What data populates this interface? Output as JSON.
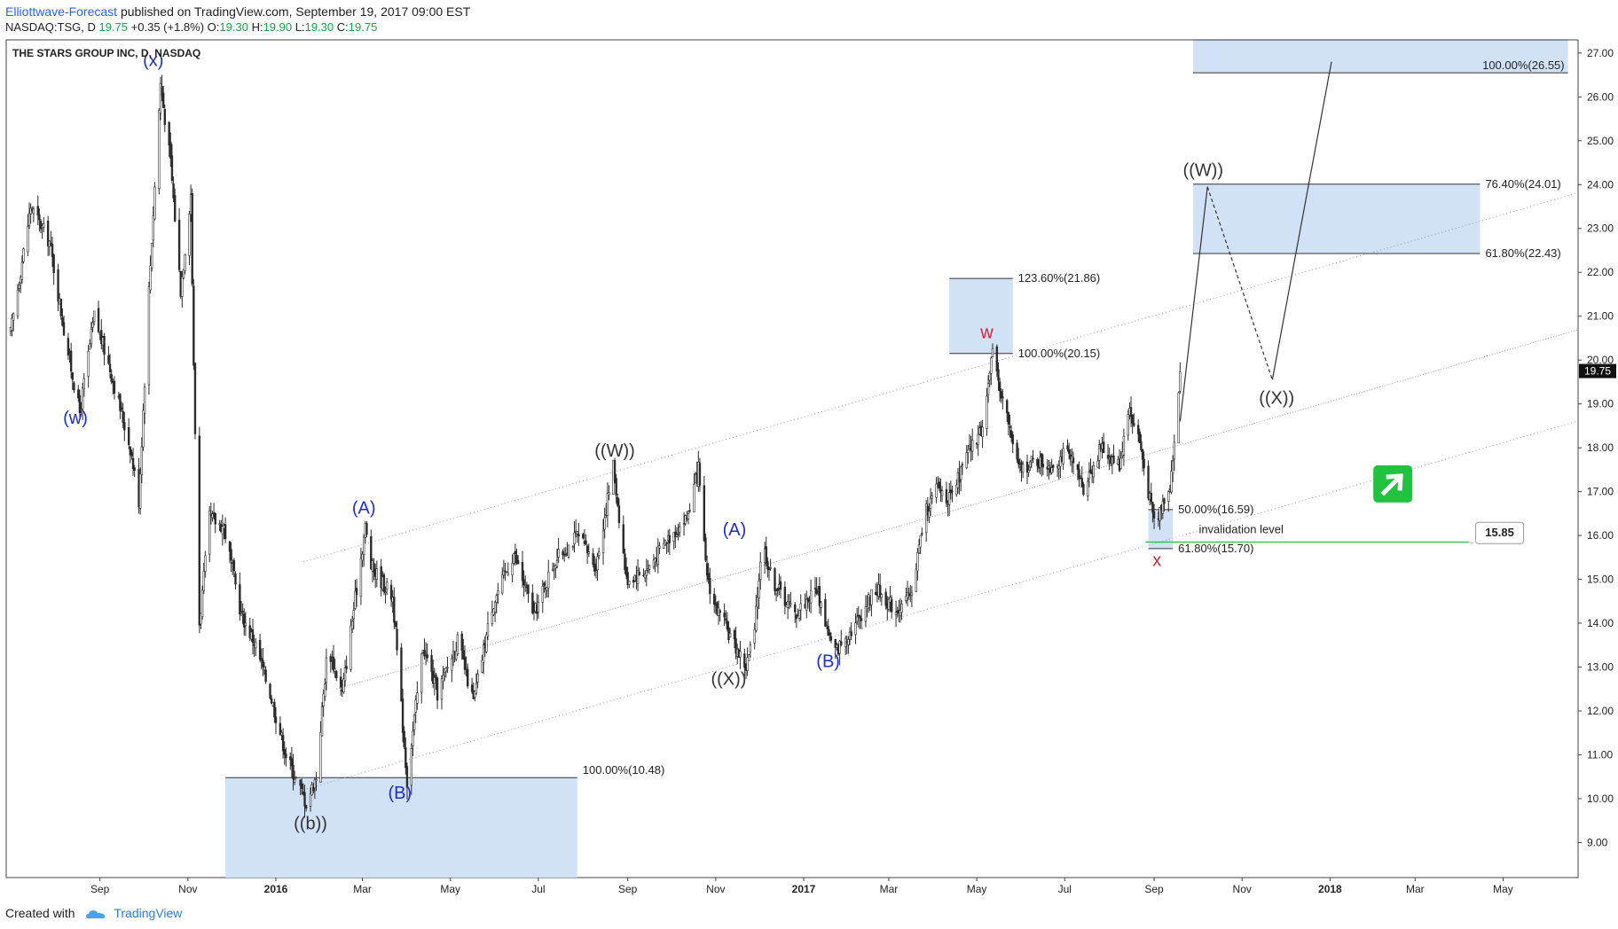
{
  "header": {
    "author": "Elliottwave-Forecast",
    "published": "published on TradingView.com, September 19, 2017 09:00 EST",
    "symbol": "NASDAQ:TSG, D",
    "last": "19.75",
    "change": "+0.35 (+1.8%)",
    "o_label": "O:",
    "o_value": "19.30",
    "h_label": "H:",
    "h_value": "19.90",
    "l_label": "L:",
    "l_value": "19.30",
    "c_label": "C:",
    "c_value": "19.75"
  },
  "footer": {
    "created_with": "Created with",
    "brand": "TradingView",
    "logo_icon": "tradingview-cloud-icon"
  },
  "chart_data": {
    "type": "candlestick",
    "title": "THE STARS GROUP INC, D, NASDAQ",
    "ylim": [
      8.2,
      27.3
    ],
    "y_ticks": [
      "9.00",
      "10.00",
      "11.00",
      "12.00",
      "13.00",
      "14.00",
      "15.00",
      "16.00",
      "17.00",
      "18.00",
      "19.00",
      "20.00",
      "21.00",
      "22.00",
      "23.00",
      "24.00",
      "25.00",
      "26.00",
      "27.00"
    ],
    "x_ticks": [
      {
        "label": "Sep",
        "date": "2015-09-01",
        "bold": false
      },
      {
        "label": "Nov",
        "date": "2015-11-01",
        "bold": false
      },
      {
        "label": "2016",
        "date": "2016-01-01",
        "bold": true
      },
      {
        "label": "Mar",
        "date": "2016-03-01",
        "bold": false
      },
      {
        "label": "May",
        "date": "2016-05-01",
        "bold": false
      },
      {
        "label": "Jul",
        "date": "2016-07-01",
        "bold": false
      },
      {
        "label": "Sep",
        "date": "2016-09-01",
        "bold": false
      },
      {
        "label": "Nov",
        "date": "2016-11-01",
        "bold": false
      },
      {
        "label": "2017",
        "date": "2017-01-01",
        "bold": true
      },
      {
        "label": "Mar",
        "date": "2017-03-01",
        "bold": false
      },
      {
        "label": "May",
        "date": "2017-05-01",
        "bold": false
      },
      {
        "label": "Jul",
        "date": "2017-07-01",
        "bold": false
      },
      {
        "label": "Sep",
        "date": "2017-09-01",
        "bold": false
      },
      {
        "label": "Nov",
        "date": "2017-11-01",
        "bold": false
      },
      {
        "label": "2018",
        "date": "2018-01-01",
        "bold": true
      },
      {
        "label": "Mar",
        "date": "2018-03-01",
        "bold": false
      },
      {
        "label": "May",
        "date": "2018-05-01",
        "bold": false
      }
    ],
    "last_price": "19.75",
    "price_path": [
      [
        "2015-07-01",
        20.6
      ],
      [
        "2015-07-15",
        23.5
      ],
      [
        "2015-07-28",
        22.7
      ],
      [
        "2015-08-08",
        20.5
      ],
      [
        "2015-08-18",
        18.8
      ],
      [
        "2015-08-28",
        21.0
      ],
      [
        "2015-09-08",
        19.8
      ],
      [
        "2015-09-22",
        18.0
      ],
      [
        "2015-09-28",
        16.8
      ],
      [
        "2015-10-05",
        21.6
      ],
      [
        "2015-10-13",
        26.3
      ],
      [
        "2015-10-20",
        24.5
      ],
      [
        "2015-10-27",
        21.6
      ],
      [
        "2015-11-03",
        23.8
      ],
      [
        "2015-11-05",
        19.8
      ],
      [
        "2015-11-09",
        14.0
      ],
      [
        "2015-11-16",
        16.4
      ],
      [
        "2015-11-26",
        16.2
      ],
      [
        "2015-12-08",
        14.2
      ],
      [
        "2015-12-18",
        13.5
      ],
      [
        "2015-12-28",
        12.4
      ],
      [
        "2016-01-08",
        11.0
      ],
      [
        "2016-01-22",
        9.9
      ],
      [
        "2016-01-29",
        10.5
      ],
      [
        "2016-02-06",
        13.5
      ],
      [
        "2016-02-16",
        12.4
      ],
      [
        "2016-02-26",
        14.8
      ],
      [
        "2016-03-03",
        16.2
      ],
      [
        "2016-03-07",
        15.3
      ],
      [
        "2016-03-22",
        14.6
      ],
      [
        "2016-04-01",
        10.4
      ],
      [
        "2016-04-12",
        13.5
      ],
      [
        "2016-04-22",
        12.4
      ],
      [
        "2016-05-06",
        13.6
      ],
      [
        "2016-05-17",
        12.2
      ],
      [
        "2016-05-30",
        14.4
      ],
      [
        "2016-06-14",
        15.6
      ],
      [
        "2016-06-28",
        14.2
      ],
      [
        "2016-07-12",
        15.4
      ],
      [
        "2016-07-28",
        16.0
      ],
      [
        "2016-08-10",
        15.3
      ],
      [
        "2016-08-22",
        17.6
      ],
      [
        "2016-08-31",
        15.0
      ],
      [
        "2016-09-14",
        15.2
      ],
      [
        "2016-09-28",
        15.9
      ],
      [
        "2016-10-12",
        16.4
      ],
      [
        "2016-10-20",
        17.5
      ],
      [
        "2016-10-25",
        15.3
      ],
      [
        "2016-10-30",
        14.5
      ],
      [
        "2016-11-08",
        13.9
      ],
      [
        "2016-11-22",
        13.0
      ],
      [
        "2016-11-28",
        13.8
      ],
      [
        "2016-12-03",
        15.9
      ],
      [
        "2016-12-10",
        15.0
      ],
      [
        "2016-12-26",
        14.2
      ],
      [
        "2017-01-10",
        14.8
      ],
      [
        "2017-01-22",
        13.3
      ],
      [
        "2017-02-06",
        14.0
      ],
      [
        "2017-02-20",
        14.8
      ],
      [
        "2017-03-06",
        14.3
      ],
      [
        "2017-03-16",
        14.6
      ],
      [
        "2017-03-26",
        16.5
      ],
      [
        "2017-04-04",
        17.1
      ],
      [
        "2017-04-13",
        16.8
      ],
      [
        "2017-04-24",
        17.8
      ],
      [
        "2017-05-04",
        18.4
      ],
      [
        "2017-05-12",
        20.1
      ],
      [
        "2017-05-20",
        19.0
      ],
      [
        "2017-05-30",
        17.5
      ],
      [
        "2017-06-10",
        17.7
      ],
      [
        "2017-06-22",
        17.6
      ],
      [
        "2017-07-02",
        17.9
      ],
      [
        "2017-07-14",
        17.1
      ],
      [
        "2017-07-26",
        18.0
      ],
      [
        "2017-08-08",
        17.6
      ],
      [
        "2017-08-14",
        18.9
      ],
      [
        "2017-08-21",
        18.3
      ],
      [
        "2017-08-29",
        16.8
      ],
      [
        "2017-09-02",
        16.2
      ],
      [
        "2017-09-06",
        16.7
      ],
      [
        "2017-09-12",
        17.2
      ],
      [
        "2017-09-16",
        18.3
      ],
      [
        "2017-09-19",
        19.75
      ]
    ],
    "fib_boxes": [
      {
        "x0": "2015-11-27",
        "x1": "2016-07-28",
        "y0": 8.2,
        "y1": 10.48,
        "top_label": "100.00%(10.48)"
      },
      {
        "x0": "2017-04-12",
        "x1": "2017-05-26",
        "y0": 20.15,
        "y1": 21.86,
        "top_label": "123.60%(21.86)",
        "bottom_label": "100.00%(20.15)"
      },
      {
        "x0": "2017-08-28",
        "x1": "2017-09-14",
        "y0": 15.7,
        "y1": 16.59,
        "top_label": "50.00%(16.59)",
        "bottom_label": "61.80%(15.70)"
      },
      {
        "x0": "2017-09-28",
        "x1": "2018-04-15",
        "y0": 22.43,
        "y1": 24.01,
        "top_label": "76.40%(24.01)",
        "bottom_label": "61.80%(22.43)"
      },
      {
        "x0": "2017-09-28",
        "x1": "2018-06-15",
        "y0": 26.55,
        "y1": 27.3,
        "bottom_label": "100.00%(26.55)"
      }
    ],
    "wave_labels": [
      {
        "text": "(w)",
        "date": "2015-08-15",
        "y": 18.55,
        "color": "#1f2ec9"
      },
      {
        "text": "(x)",
        "date": "2015-10-08",
        "y": 26.7,
        "color": "#1f2ec9"
      },
      {
        "text": "((b))",
        "date": "2016-01-25",
        "y": 9.3,
        "color": "#333333"
      },
      {
        "text": "(A)",
        "date": "2016-03-02",
        "y": 16.5,
        "color": "#1f2ec9"
      },
      {
        "text": "(B)",
        "date": "2016-03-27",
        "y": 10.0,
        "color": "#1f2ec9"
      },
      {
        "text": "((W))",
        "date": "2016-08-23",
        "y": 17.8,
        "color": "#333333"
      },
      {
        "text": "(A)",
        "date": "2016-11-14",
        "y": 16.0,
        "color": "#1f2ec9"
      },
      {
        "text": "((X))",
        "date": "2016-11-10",
        "y": 12.6,
        "color": "#333333"
      },
      {
        "text": "(B)",
        "date": "2017-01-18",
        "y": 13.0,
        "color": "#1f2ec9"
      },
      {
        "text": "w",
        "date": "2017-05-08",
        "y": 20.5,
        "color": "#d0253b"
      },
      {
        "text": "x",
        "date": "2017-09-03",
        "y": 15.3,
        "color": "#d0253b"
      },
      {
        "text": "((W))",
        "date": "2017-10-05",
        "y": 24.2,
        "color": "#333333"
      },
      {
        "text": "((X))",
        "date": "2017-11-25",
        "y": 19.0,
        "color": "#333333"
      }
    ],
    "invalidation": {
      "text": "invalidation level",
      "value": "15.85",
      "y": 15.85,
      "x0": "2017-08-26",
      "x1": "2018-04-07"
    },
    "arrow_icon": "up-right-arrow-icon",
    "accent_green": "#22c241",
    "channel_color": "#9e9e9e",
    "box_color": "#cfdff5"
  }
}
